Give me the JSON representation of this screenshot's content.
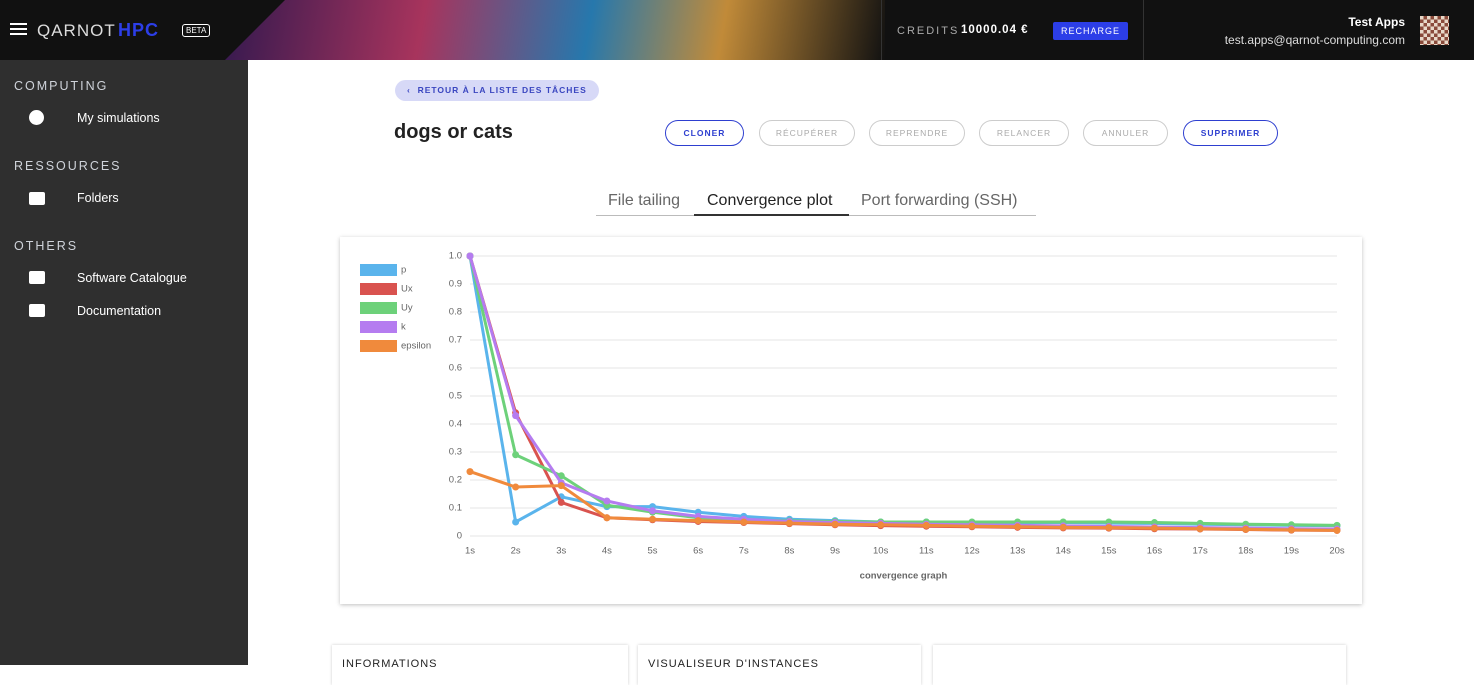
{
  "header": {
    "brand": "QARNOT",
    "brand_hpc": "HPC",
    "badge": "BETA",
    "credits_label": "CREDITS",
    "credits_value": "10000.04 €",
    "recharge": "RECHARGE",
    "user_name": "Test Apps",
    "user_email": "test.apps@qarnot-computing.com"
  },
  "sidebar": {
    "sections": [
      {
        "title": "COMPUTING",
        "items": [
          "My simulations"
        ]
      },
      {
        "title": "RESSOURCES",
        "items": [
          "Folders"
        ]
      },
      {
        "title": "OTHERS",
        "items": [
          "Software Catalogue",
          "Documentation"
        ]
      }
    ]
  },
  "task": {
    "back": "RETOUR À LA LISTE DES TÂCHES",
    "title": "dogs or cats",
    "actions": [
      "CLONER",
      "RÉCUPÉRER",
      "REPRENDRE",
      "RELANCER",
      "ANNULER",
      "SUPPRIMER"
    ],
    "tabs": [
      "File tailing",
      "Convergence plot",
      "Port forwarding (SSH)"
    ]
  },
  "chart_data": {
    "type": "line",
    "x_label": "convergence graph",
    "categories": [
      "1s",
      "2s",
      "3s",
      "4s",
      "5s",
      "6s",
      "7s",
      "8s",
      "9s",
      "10s",
      "11s",
      "12s",
      "13s",
      "14s",
      "15s",
      "16s",
      "17s",
      "18s",
      "19s",
      "20s"
    ],
    "ylim": [
      0,
      1
    ],
    "yticks": [
      0,
      0.1,
      0.2,
      0.3,
      0.4,
      0.5,
      0.6,
      0.7,
      0.8,
      0.9,
      {
        "value": 1,
        "label": "1.0"
      }
    ],
    "grid": true,
    "legend": "top-left",
    "series": [
      {
        "name": "p",
        "color": "#5ab4ec",
        "values": [
          1.0,
          0.05,
          0.14,
          0.105,
          0.105,
          0.085,
          0.07,
          0.06,
          0.055,
          0.05,
          0.05,
          0.048,
          0.048,
          0.048,
          0.046,
          0.045,
          0.042,
          0.04,
          0.038,
          0.037
        ]
      },
      {
        "name": "Ux",
        "color": "#d9534f",
        "values": [
          1.0,
          0.44,
          0.12,
          0.065,
          0.058,
          0.052,
          0.048,
          0.044,
          0.04,
          0.037,
          0.035,
          0.033,
          0.031,
          0.029,
          0.028,
          0.026,
          0.025,
          0.023,
          0.021,
          0.02
        ]
      },
      {
        "name": "Uy",
        "color": "#6dd17a",
        "values": [
          1.0,
          0.29,
          0.215,
          0.11,
          0.085,
          0.065,
          0.058,
          0.054,
          0.052,
          0.05,
          0.05,
          0.05,
          0.05,
          0.05,
          0.05,
          0.048,
          0.045,
          0.042,
          0.04,
          0.038
        ]
      },
      {
        "name": "k",
        "color": "#b57cf0",
        "values": [
          1.0,
          0.43,
          0.19,
          0.125,
          0.09,
          0.07,
          0.06,
          0.052,
          0.048,
          0.045,
          0.042,
          0.04,
          0.038,
          0.036,
          0.034,
          0.032,
          0.03,
          0.028,
          0.026,
          0.025
        ]
      },
      {
        "name": "epsilon",
        "color": "#f08a3c",
        "values": [
          0.23,
          0.175,
          0.18,
          0.065,
          0.06,
          0.055,
          0.05,
          0.046,
          0.042,
          0.04,
          0.038,
          0.035,
          0.033,
          0.031,
          0.03,
          0.028,
          0.026,
          0.024,
          0.022,
          0.02
        ]
      }
    ]
  },
  "cards": [
    "INFORMATIONS",
    "VISUALISEUR D'INSTANCES"
  ]
}
